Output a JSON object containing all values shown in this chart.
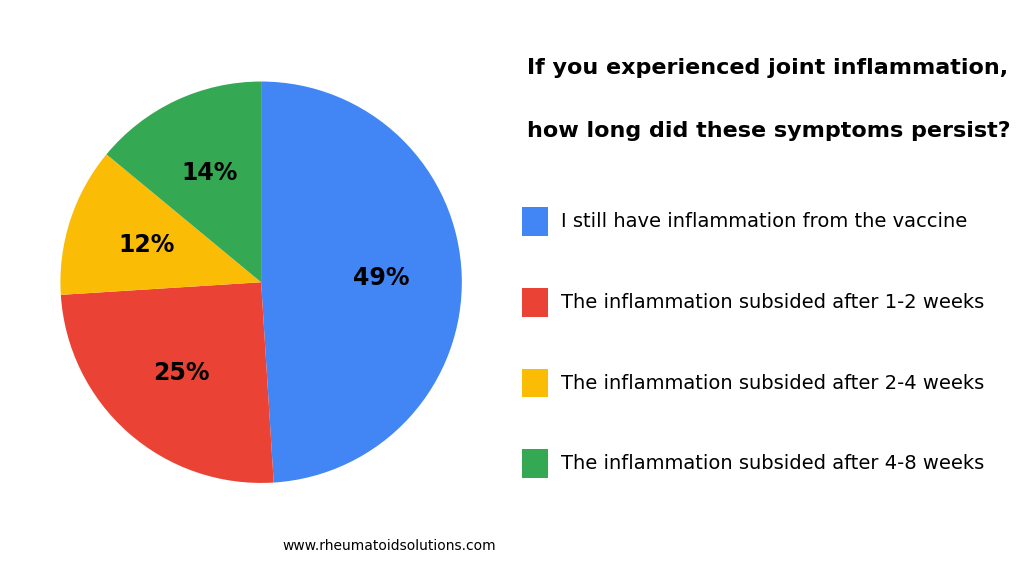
{
  "values": [
    49,
    25,
    12,
    14
  ],
  "colors": [
    "#4285F4",
    "#EA4335",
    "#FBBC05",
    "#34A853"
  ],
  "labels": [
    "49%",
    "25%",
    "12%",
    "14%"
  ],
  "legend_labels": [
    "I still have inflammation from the vaccine",
    "The inflammation subsided after 1-2 weeks",
    "The inflammation subsided after 2-4 weeks",
    "The inflammation subsided after 4-8 weeks"
  ],
  "title_line1": "If you experienced joint inflammation,",
  "title_line2": "how long did these symptoms persist?",
  "watermark": "www.rheumatoidsolutions.com",
  "bg_color": "#FFFFFF",
  "start_angle": 90,
  "label_fontsize": 17,
  "legend_fontsize": 14,
  "title_fontsize": 16
}
